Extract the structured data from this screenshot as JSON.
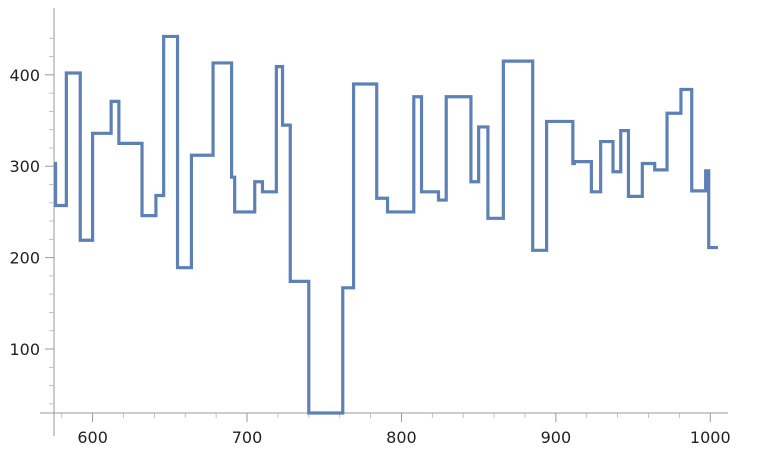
{
  "chart_data": {
    "type": "line",
    "step": true,
    "title": "",
    "xlabel": "",
    "ylabel": "",
    "xlim": [
      575,
      1005
    ],
    "ylim": [
      30,
      460
    ],
    "axes_origin": [
      575,
      30
    ],
    "x_ticks": [
      600,
      700,
      800,
      900,
      1000
    ],
    "y_ticks": [
      100,
      200,
      300,
      400
    ],
    "x_tick_labels": [
      "600",
      "700",
      "800",
      "900",
      "1000"
    ],
    "y_tick_labels": [
      "100",
      "200",
      "300",
      "400"
    ],
    "grid": false,
    "legend": "none",
    "colors": {
      "series": "#5e81b5",
      "axis": "#9a9a9a"
    },
    "series": [
      {
        "x": [
          575,
          576,
          583,
          592,
          600,
          612,
          617,
          627,
          632,
          641,
          646,
          655,
          664,
          678,
          690,
          692,
          705,
          710,
          719,
          723,
          728,
          730,
          740,
          762,
          769,
          784,
          791,
          808,
          813,
          824,
          829,
          845,
          850,
          856,
          866,
          885,
          894,
          911,
          912,
          923,
          929,
          937,
          942,
          947,
          956,
          964,
          972,
          981,
          988,
          995,
          997,
          999,
          1000,
          1005
        ],
        "y": [
          303,
          257,
          402,
          219,
          336,
          371,
          325,
          325,
          246,
          268,
          442,
          189,
          312,
          413,
          288,
          250,
          283,
          272,
          409,
          345,
          174,
          174,
          30,
          167,
          390,
          265,
          250,
          376,
          272,
          263,
          376,
          283,
          343,
          243,
          415,
          208,
          349,
          303,
          305,
          272,
          327,
          294,
          339,
          267,
          303,
          296,
          358,
          384,
          273,
          273,
          295,
          211,
          211,
          211
        ]
      }
    ]
  }
}
